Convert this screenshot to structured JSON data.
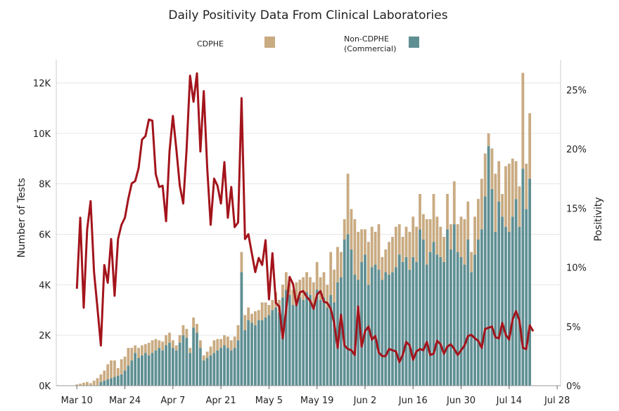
{
  "chart_data": {
    "type": "bar+line",
    "title": "Daily Positivity Data From Clinical Laboratories",
    "ylabel_left": "Number of Tests",
    "ylabel_right": "Positivity",
    "xlabel": "",
    "x_tick_labels": [
      "Mar 10",
      "Mar 24",
      "Apr 7",
      "Apr 21",
      "May 5",
      "May 19",
      "Jun 2",
      "Jun 16",
      "Jun 30",
      "Jul 14",
      "Jul 28"
    ],
    "y_left_ticks": [
      "0K",
      "2K",
      "4K",
      "6K",
      "8K",
      "10K",
      "12K"
    ],
    "y_right_ticks": [
      "0%",
      "5%",
      "10%",
      "15%",
      "20%",
      "25%"
    ],
    "y_left_range": [
      0,
      13000
    ],
    "y_right_range": [
      0,
      27.5
    ],
    "x_range_day_of_year": [
      64,
      211
    ],
    "first_day": "Mar 10",
    "grid": true,
    "legend_position": "top",
    "colors": {
      "cdphe": "#c9ab82",
      "non_cdphe": "#5f8f93",
      "positivity": "#a3141c",
      "grid": "#e6e6e6"
    },
    "legend": [
      {
        "key": "cdphe",
        "label": [
          "CDPHE"
        ]
      },
      {
        "key": "non_cdphe",
        "label": [
          "Non-CDPHE",
          "(Commercial)"
        ]
      }
    ],
    "non_cdphe_tests": [
      0,
      0,
      0,
      0,
      0,
      0,
      0,
      150,
      200,
      250,
      300,
      350,
      400,
      450,
      600,
      800,
      1000,
      1300,
      1100,
      1200,
      1300,
      1200,
      1300,
      1400,
      1500,
      1400,
      1600,
      1700,
      1500,
      1400,
      1700,
      2000,
      1900,
      1300,
      2300,
      2100,
      1500,
      1000,
      1100,
      1200,
      1300,
      1400,
      1500,
      1600,
      1500,
      1400,
      1500,
      1800,
      4500,
      2200,
      2600,
      2500,
      2400,
      2600,
      2600,
      2700,
      2800,
      3000,
      3100,
      2900,
      3500,
      3800,
      3600,
      3200,
      3300,
      3500,
      3400,
      3700,
      3600,
      3100,
      3800,
      3400,
      3500,
      3100,
      3600,
      3300,
      4100,
      4300,
      5800,
      6000,
      5400,
      4400,
      4200,
      4900,
      5200,
      4000,
      4700,
      4800,
      4600,
      4200,
      4500,
      4400,
      4500,
      4700,
      5200,
      4900,
      5100,
      4600,
      5100,
      4900,
      6200,
      5800,
      4800,
      5300,
      5700,
      5200,
      5100,
      4900,
      6200,
      5400,
      6400,
      5300,
      5100,
      4800,
      5800,
      4500,
      5200,
      5800,
      6200,
      7500,
      9500,
      7800,
      6100,
      7300,
      6700,
      6300,
      6100,
      6700,
      7400,
      6300,
      8600,
      7000,
      8200
    ],
    "cdphe_tests": [
      50,
      80,
      120,
      150,
      100,
      200,
      300,
      300,
      400,
      600,
      700,
      650,
      300,
      600,
      550,
      700,
      500,
      300,
      400,
      400,
      350,
      500,
      500,
      450,
      300,
      350,
      400,
      400,
      300,
      200,
      300,
      400,
      350,
      200,
      400,
      350,
      300,
      200,
      250,
      350,
      500,
      450,
      350,
      400,
      450,
      400,
      450,
      600,
      800,
      600,
      500,
      350,
      550,
      400,
      700,
      600,
      400,
      400,
      600,
      500,
      500,
      700,
      500,
      600,
      800,
      700,
      900,
      800,
      700,
      1000,
      1100,
      900,
      1000,
      900,
      1700,
      1300,
      1400,
      1000,
      800,
      2400,
      1600,
      2200,
      1900,
      1300,
      1000,
      1700,
      1600,
      1300,
      1800,
      900,
      900,
      1300,
      1400,
      1600,
      1200,
      1000,
      1200,
      1500,
      1600,
      1400,
      1400,
      1000,
      1800,
      1300,
      1900,
      1500,
      1200,
      1000,
      1400,
      1000,
      1700,
      1100,
      1600,
      1800,
      1500,
      800,
      1500,
      1600,
      2000,
      1700,
      500,
      1600,
      2300,
      1600,
      900,
      2400,
      2700,
      2300,
      1500,
      1600,
      3800,
      1800,
      2600
    ],
    "positivity_pct": [
      8.2,
      14.2,
      6.6,
      13.2,
      15.6,
      9.6,
      6.6,
      3.4,
      10.2,
      8.7,
      12.4,
      7.6,
      12.4,
      13.6,
      14.2,
      15.8,
      17.1,
      17.3,
      18.4,
      20.8,
      21.1,
      22.5,
      22.4,
      17.9,
      16.8,
      16.9,
      13.9,
      19.8,
      22.8,
      20.0,
      16.9,
      15.4,
      20.0,
      26.2,
      24.0,
      26.4,
      19.8,
      24.9,
      18.4,
      13.6,
      17.5,
      16.9,
      15.4,
      18.9,
      14.2,
      16.8,
      13.4,
      13.8,
      24.3,
      12.4,
      12.8,
      11.2,
      9.6,
      10.8,
      10.2,
      12.3,
      7.3,
      11.2,
      7.0,
      6.7,
      4.0,
      6.4,
      9.2,
      8.6,
      6.8,
      7.9,
      8.0,
      7.5,
      7.2,
      6.5,
      7.7,
      8.0,
      7.1,
      7.0,
      6.5,
      5.3,
      3.2,
      6.0,
      3.4,
      3.1,
      3.0,
      2.6,
      6.7,
      3.3,
      4.6,
      5.0,
      3.9,
      4.2,
      2.8,
      2.5,
      2.5,
      3.1,
      3.0,
      2.9,
      2.0,
      2.6,
      3.7,
      3.4,
      2.2,
      2.9,
      3.1,
      3.0,
      3.7,
      2.6,
      2.7,
      3.8,
      3.5,
      2.7,
      3.3,
      3.5,
      3.1,
      2.6,
      3.0,
      3.4,
      4.2,
      4.3,
      4.0,
      3.8,
      3.2,
      4.8,
      4.9,
      5.0,
      4.1,
      4.0,
      5.3,
      4.3,
      3.9,
      5.6,
      6.3,
      5.5,
      3.2,
      3.1,
      5.1,
      4.6
    ]
  }
}
